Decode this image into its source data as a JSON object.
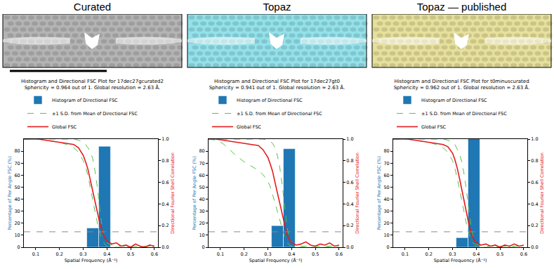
{
  "panels": [
    {
      "title": "Curated",
      "color": "#b4b4b4"
    },
    {
      "title": "Topaz",
      "color": "#93e1ea"
    },
    {
      "title": "Topaz — published",
      "color": "#e6e09c"
    }
  ],
  "chart_data": [
    {
      "type": "histogram",
      "title": "Histogram and Directional FSC Plot for 17dec27gcurated2",
      "subtitle": "Sphericity = 0.964 out of 1. Global resolution = 2.63 Å.",
      "x_label": "Spatial Frequency (Å⁻¹)",
      "y_label": "Percentage of Per Angle FSC (%)",
      "y2_label": "Directional Fourier Shell Correlation",
      "xlim": [
        0.05,
        0.615
      ],
      "xticks": [
        0.1,
        0.2,
        0.3,
        0.4,
        0.5,
        0.6
      ],
      "ylim": [
        0,
        90
      ],
      "yticks": [
        0,
        10,
        20,
        30,
        40,
        50,
        60,
        70,
        80
      ],
      "y2lim": [
        0,
        1
      ],
      "y2ticks": [
        {
          "value": 0,
          "label": "0.0"
        },
        0.2,
        0.4,
        0.6,
        0.8,
        {
          "value": 1,
          "label": "1.0"
        }
      ],
      "grid": false,
      "legend": "top",
      "histogram": {
        "name": "Histogram of Directional FSC",
        "color": "#1f77b4",
        "bins": [
          0.315,
          0.365,
          0.415
        ],
        "values": [
          16,
          84
        ]
      },
      "reference_line": {
        "value": 0.143,
        "axis": "y2",
        "line_style": "dashed"
      },
      "x": [
        0.05,
        0.08,
        0.11,
        0.14,
        0.17,
        0.2,
        0.23,
        0.26,
        0.28,
        0.3,
        0.31,
        0.32,
        0.33,
        0.34,
        0.35,
        0.36,
        0.37,
        0.38,
        0.39,
        0.4,
        0.42,
        0.44,
        0.46,
        0.48,
        0.5,
        0.52,
        0.54,
        0.56,
        0.58,
        0.6
      ],
      "series": [
        {
          "name": "±1 S.D. from Mean of Directional FSC",
          "type": "line",
          "color": "#5cbf4c",
          "line_style": "dashed",
          "axis": "y2",
          "upper": [
            1,
            1,
            1,
            1,
            1,
            1,
            1,
            1,
            0.99,
            0.97,
            0.95,
            0.92,
            0.88,
            0.82,
            0.7,
            0.55,
            0.35,
            0.18,
            0.08,
            0.04,
            0.02,
            0.02,
            0.01,
            0.01,
            0.01,
            0.01,
            0.01,
            0.01,
            0.01,
            0.01
          ],
          "lower": [
            1,
            1,
            1,
            0.99,
            0.98,
            0.97,
            0.95,
            0.92,
            0.88,
            0.8,
            0.74,
            0.66,
            0.55,
            0.44,
            0.32,
            0.22,
            0.13,
            0.07,
            0.03,
            0.01,
            0,
            0,
            0,
            0,
            0,
            0,
            0,
            0,
            0,
            0
          ]
        },
        {
          "name": "Global FSC",
          "type": "line",
          "color": "#e41a1c",
          "line_style": "solid",
          "axis": "y2",
          "values": [
            1,
            1,
            1,
            0.99,
            0.98,
            0.97,
            0.96,
            0.95,
            0.92,
            0.85,
            0.79,
            0.72,
            0.62,
            0.52,
            0.42,
            0.32,
            0.22,
            0.15,
            0.09,
            0.06,
            0.03,
            0.04,
            0.01,
            0.02,
            0.0,
            0.03,
            0.01,
            0.0,
            0.02,
            0.01
          ]
        }
      ]
    },
    {
      "type": "histogram",
      "title": "Histogram and Directional FSC Plot for 17dec27gt0",
      "subtitle": "Sphericity = 0.941 out of 1. Global resolution = 2.63 Å.",
      "x_label": "Spatial Frequency (Å⁻¹)",
      "y_label": "Percentage of Per Angle FSC (%)",
      "y2_label": "Directional Fourier Shell Correlation",
      "xlim": [
        0.05,
        0.615
      ],
      "xticks": [
        0.1,
        0.2,
        0.3,
        0.4,
        0.5,
        0.6
      ],
      "ylim": [
        0,
        90
      ],
      "yticks": [
        0,
        10,
        20,
        30,
        40,
        50,
        60,
        70,
        80
      ],
      "y2lim": [
        0,
        1
      ],
      "y2ticks": [
        {
          "value": 0,
          "label": "0.0"
        },
        0.2,
        0.4,
        0.6,
        0.8,
        {
          "value": 1,
          "label": "1.0"
        }
      ],
      "grid": false,
      "legend": "top",
      "histogram": {
        "name": "Histogram of Directional FSC",
        "color": "#1f77b4",
        "bins": [
          0.315,
          0.365,
          0.415
        ],
        "values": [
          18,
          82
        ]
      },
      "reference_line": {
        "value": 0.143,
        "axis": "y2",
        "line_style": "dashed"
      },
      "x": [
        0.05,
        0.08,
        0.11,
        0.14,
        0.17,
        0.2,
        0.23,
        0.26,
        0.28,
        0.3,
        0.31,
        0.32,
        0.33,
        0.34,
        0.35,
        0.36,
        0.37,
        0.38,
        0.39,
        0.4,
        0.42,
        0.44,
        0.46,
        0.48,
        0.5,
        0.52,
        0.54,
        0.56,
        0.58,
        0.6
      ],
      "series": [
        {
          "name": "±1 S.D. from Mean of Directional FSC",
          "type": "line",
          "color": "#5cbf4c",
          "line_style": "dashed",
          "axis": "y2",
          "upper": [
            1,
            1,
            1,
            1,
            1,
            1,
            1,
            1,
            1,
            0.99,
            0.98,
            0.96,
            0.92,
            0.85,
            0.74,
            0.58,
            0.38,
            0.2,
            0.09,
            0.04,
            0.02,
            0.01,
            0.01,
            0.01,
            0.01,
            0.01,
            0.01,
            0.01,
            0.01,
            0.01
          ],
          "lower": [
            1,
            0.99,
            0.96,
            0.9,
            0.84,
            0.79,
            0.75,
            0.71,
            0.67,
            0.61,
            0.56,
            0.49,
            0.41,
            0.33,
            0.25,
            0.17,
            0.1,
            0.05,
            0.02,
            0.01,
            0,
            0,
            0,
            0,
            0,
            0,
            0,
            0,
            0,
            0
          ]
        },
        {
          "name": "Global FSC",
          "type": "line",
          "color": "#e41a1c",
          "line_style": "solid",
          "axis": "y2",
          "values": [
            1,
            1,
            0.99,
            0.98,
            0.97,
            0.96,
            0.95,
            0.94,
            0.9,
            0.83,
            0.77,
            0.7,
            0.6,
            0.5,
            0.4,
            0.3,
            0.2,
            0.12,
            0.07,
            0.04,
            0.02,
            0.03,
            0.05,
            0.02,
            0.01,
            0.03,
            0.02,
            0.04,
            0.01,
            0.02
          ]
        }
      ]
    },
    {
      "type": "histogram",
      "title": "Histogram and Directional FSC Plot for t0minuscurated",
      "subtitle": "Sphericity = 0.962 out of 1. Global resolution = 2.63 Å.",
      "x_label": "Spatial Frequency (Å⁻¹)",
      "y_label": "Percentage of Per Angle FSC (%)",
      "y2_label": "Directional Fourier Shell Correlation",
      "xlim": [
        0.05,
        0.615
      ],
      "xticks": [
        0.1,
        0.2,
        0.3,
        0.4,
        0.5,
        0.6
      ],
      "ylim": [
        0,
        90
      ],
      "yticks": [
        0,
        10,
        20,
        30,
        40,
        50,
        60,
        70,
        80
      ],
      "y2lim": [
        0,
        1
      ],
      "y2ticks": [
        {
          "value": 0,
          "label": "0.0"
        },
        0.2,
        0.4,
        0.6,
        0.8,
        {
          "value": 1,
          "label": "1.0"
        }
      ],
      "grid": false,
      "legend": "top",
      "histogram": {
        "name": "Histogram of Directional FSC",
        "color": "#1f77b4",
        "bins": [
          0.315,
          0.365,
          0.415
        ],
        "values": [
          8,
          92
        ]
      },
      "reference_line": {
        "value": 0.143,
        "axis": "y2",
        "line_style": "dashed"
      },
      "x": [
        0.05,
        0.08,
        0.11,
        0.14,
        0.17,
        0.2,
        0.23,
        0.26,
        0.28,
        0.3,
        0.31,
        0.32,
        0.33,
        0.34,
        0.35,
        0.36,
        0.37,
        0.38,
        0.39,
        0.4,
        0.42,
        0.44,
        0.46,
        0.48,
        0.5,
        0.52,
        0.54,
        0.56,
        0.58,
        0.6
      ],
      "series": [
        {
          "name": "±1 S.D. from Mean of Directional FSC",
          "type": "line",
          "color": "#5cbf4c",
          "line_style": "dashed",
          "axis": "y2",
          "upper": [
            1,
            1,
            1,
            1,
            1,
            1,
            1,
            1,
            0.99,
            0.97,
            0.95,
            0.91,
            0.86,
            0.78,
            0.66,
            0.5,
            0.32,
            0.16,
            0.07,
            0.03,
            0.01,
            0.01,
            0.01,
            0.01,
            0.01,
            0.01,
            0.01,
            0.01,
            0.01,
            0.01
          ],
          "lower": [
            1,
            1,
            1,
            0.99,
            0.98,
            0.97,
            0.95,
            0.92,
            0.88,
            0.8,
            0.73,
            0.64,
            0.53,
            0.42,
            0.3,
            0.2,
            0.12,
            0.06,
            0.03,
            0.01,
            0,
            0,
            0,
            0,
            0,
            0,
            0,
            0,
            0,
            0
          ]
        },
        {
          "name": "Global FSC",
          "type": "line",
          "color": "#e41a1c",
          "line_style": "solid",
          "axis": "y2",
          "values": [
            1,
            1,
            1,
            0.99,
            0.98,
            0.97,
            0.96,
            0.95,
            0.93,
            0.87,
            0.81,
            0.73,
            0.63,
            0.52,
            0.41,
            0.3,
            0.2,
            0.12,
            0.07,
            0.04,
            0.02,
            0.03,
            0.01,
            0.02,
            0.0,
            0.02,
            0.01,
            0.03,
            0.01,
            0.02
          ]
        }
      ]
    }
  ]
}
